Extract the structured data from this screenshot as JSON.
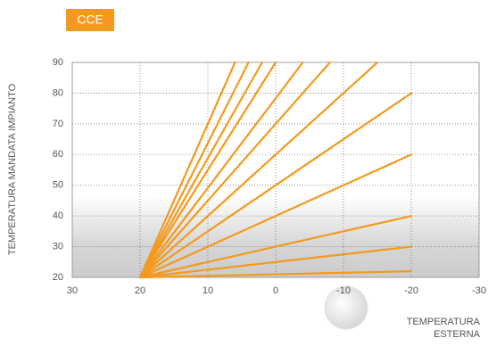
{
  "chart_data": {
    "type": "line",
    "badge": "CCE",
    "ylabel": "TEMPERATURA MANDATA IMPIANTO",
    "xlabel": [
      "TEMPERATURA",
      "ESTERNA"
    ],
    "color": "#f39a1e",
    "xlim": [
      30,
      -30
    ],
    "xticks": [
      30,
      20,
      10,
      0,
      -10,
      -20,
      -30
    ],
    "ylim": [
      20,
      90
    ],
    "yticks": [
      20,
      30,
      40,
      50,
      60,
      70,
      80,
      90
    ],
    "grid": true,
    "series": [
      {
        "x": [
          20,
          -20
        ],
        "values": [
          20,
          22
        ]
      },
      {
        "x": [
          20,
          -20
        ],
        "values": [
          20,
          30
        ]
      },
      {
        "x": [
          20,
          -20
        ],
        "values": [
          20,
          40
        ]
      },
      {
        "x": [
          20,
          -20
        ],
        "values": [
          20,
          60
        ]
      },
      {
        "x": [
          20,
          -20
        ],
        "values": [
          20,
          80
        ]
      },
      {
        "x": [
          20,
          -15
        ],
        "values": [
          20,
          90
        ]
      },
      {
        "x": [
          20,
          -8
        ],
        "values": [
          20,
          90
        ]
      },
      {
        "x": [
          20,
          -4
        ],
        "values": [
          20,
          90
        ]
      },
      {
        "x": [
          20,
          0
        ],
        "values": [
          20,
          90
        ]
      },
      {
        "x": [
          20,
          2
        ],
        "values": [
          20,
          90
        ]
      },
      {
        "x": [
          20,
          4
        ],
        "values": [
          20,
          90
        ]
      },
      {
        "x": [
          20,
          6
        ],
        "values": [
          20,
          90
        ]
      }
    ]
  }
}
